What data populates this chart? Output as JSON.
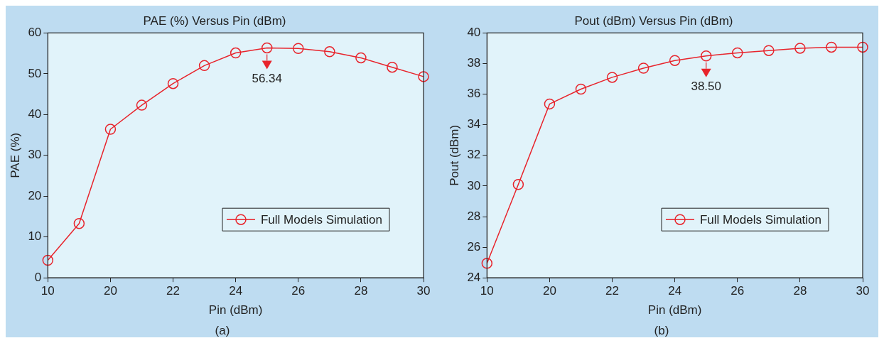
{
  "chart_data": [
    {
      "type": "line",
      "title": "PAE (%) Versus Pin (dBm)",
      "xlabel": "Pin (dBm)",
      "ylabel": "PAE (%)",
      "categories": [
        "10",
        null,
        "20",
        null,
        "22",
        null,
        "24",
        null,
        "26",
        null,
        "28",
        null,
        "30"
      ],
      "series": [
        {
          "name": "Full Models Simulation",
          "color": "#e8242c",
          "values": [
            4.3,
            13.3,
            36.4,
            42.3,
            47.6,
            52.0,
            55.1,
            56.34,
            56.2,
            55.4,
            53.9,
            51.6,
            49.3
          ]
        }
      ],
      "ylim": [
        0,
        60
      ],
      "yticks": [
        0,
        10,
        20,
        30,
        40,
        50,
        60
      ],
      "grid": false,
      "legend": "bottom right",
      "marker": "circle",
      "line_style": "solid",
      "annotations": [
        {
          "text": "56.34",
          "y": 56.34
        },
        "(a)"
      ]
    },
    {
      "type": "line",
      "title": "Pout (dBm) Versus Pin (dBm)",
      "xlabel": "Pin (dBm)",
      "ylabel": "Pout (dBm)",
      "categories": [
        "10",
        null,
        "20",
        null,
        "22",
        null,
        "24",
        null,
        "26",
        null,
        "28",
        null,
        "30"
      ],
      "series": [
        {
          "name": "Full Models Simulation",
          "color": "#e8242c",
          "values": [
            24.95,
            30.1,
            35.36,
            36.33,
            37.1,
            37.7,
            38.2,
            38.5,
            38.7,
            38.85,
            39.0,
            39.07,
            39.07
          ]
        }
      ],
      "ylim": [
        24,
        40
      ],
      "yticks": [
        24,
        26,
        28,
        30,
        32,
        34,
        36,
        38,
        40
      ],
      "grid": false,
      "legend": "bottom right",
      "marker": "circle",
      "line_style": "solid",
      "annotations": [
        {
          "text": "38.50",
          "y": 38.5
        },
        "(b)"
      ]
    }
  ]
}
